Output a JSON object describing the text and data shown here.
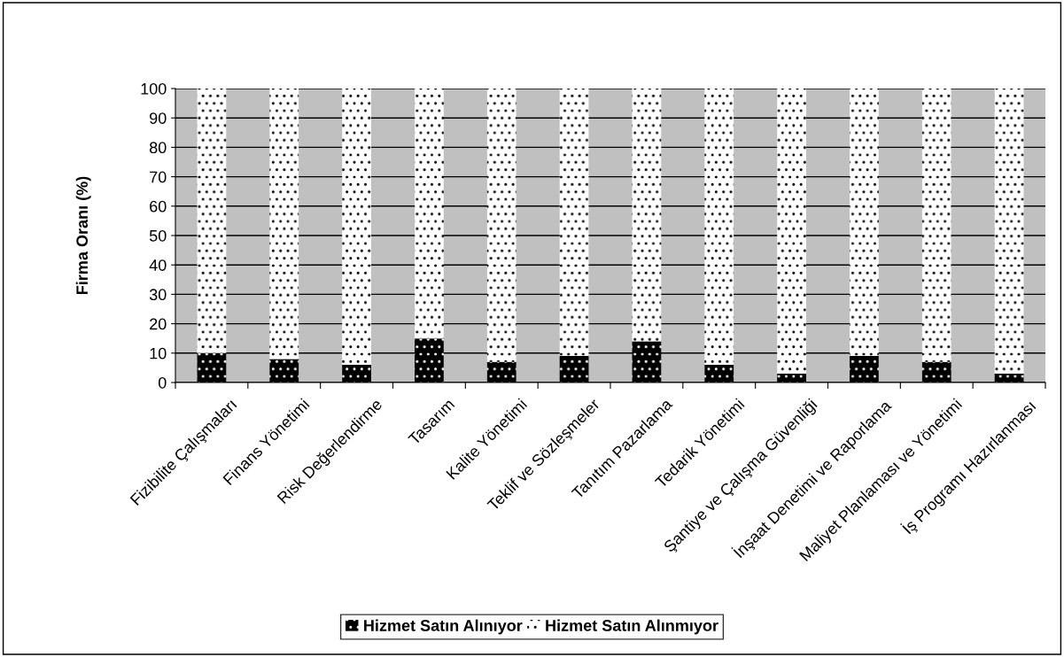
{
  "chart_data": {
    "type": "bar",
    "stacked": true,
    "ylabel": "Firma Oranı (%)",
    "categories": [
      "Fizibilite Çalışmaları",
      "Finans Yönetimi",
      "Risk Değerlendirme",
      "Tasarım",
      "Kalite Yönetimi",
      "Teklif ve Sözleşmeler",
      "Tanıtım Pazarlama",
      "Tedarik Yönetimi",
      "Şantiye ve Çalışma Güvenliği",
      "İnşaat Denetimi ve Raporlama",
      "Maliyet Planlaması ve Yönetimi",
      "İş Programı Hazırlanması"
    ],
    "series": [
      {
        "name": "Hizmet Satın Alınıyor",
        "color": "#000000",
        "values": [
          10,
          8,
          6,
          15,
          7,
          9,
          14,
          6,
          3,
          9,
          7,
          3
        ]
      },
      {
        "name": "Hizmet Satın Alınmıyor",
        "color": "#ffffff",
        "values": [
          90,
          92,
          94,
          85,
          93,
          91,
          86,
          94,
          97,
          91,
          93,
          97
        ]
      }
    ],
    "ylim": [
      0,
      100
    ],
    "yticks": [
      0,
      10,
      20,
      30,
      40,
      50,
      60,
      70,
      80,
      90,
      100
    ],
    "grid": "y",
    "legend": "bottom"
  }
}
